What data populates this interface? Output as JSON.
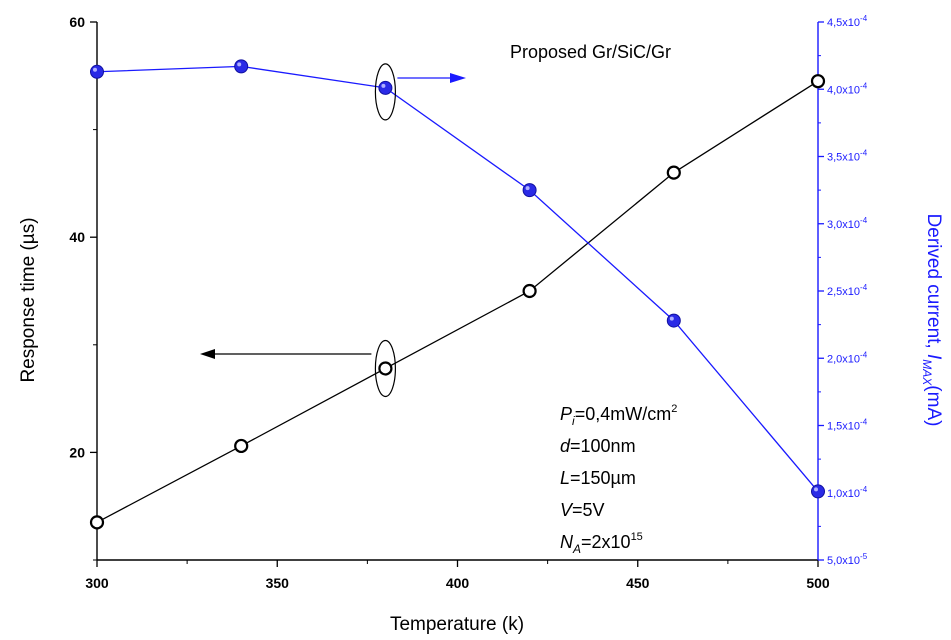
{
  "chart_data": {
    "type": "line",
    "title": "",
    "annotation": "Proposed Gr/SiC/Gr",
    "xlabel": "Temperature (k)",
    "ylabel_left": "Response time (µs)",
    "ylabel_right": {
      "main": "Derived current, ",
      "italic": "I",
      "sub": "MAX",
      "unit": "(mA)"
    },
    "xlim": [
      300,
      500
    ],
    "ylim_left": [
      10,
      60
    ],
    "ylim_right": [
      5e-05,
      0.00045
    ],
    "x_ticks": [
      "300",
      "350",
      "400",
      "450",
      "500"
    ],
    "y_left_ticks": [
      "20",
      "40",
      "60"
    ],
    "y_right_ticks": [
      {
        "value": 5e-05,
        "mantissa": "5,0x10",
        "exp": "-5"
      },
      {
        "value": 0.0001,
        "mantissa": "1,0x10",
        "exp": "-4"
      },
      {
        "value": 0.00015,
        "mantissa": "1,5x10",
        "exp": "-4"
      },
      {
        "value": 0.0002,
        "mantissa": "2,0x10",
        "exp": "-4"
      },
      {
        "value": 0.00025,
        "mantissa": "2,5x10",
        "exp": "-4"
      },
      {
        "value": 0.0003,
        "mantissa": "3,0x10",
        "exp": "-4"
      },
      {
        "value": 0.00035,
        "mantissa": "3,5x10",
        "exp": "-4"
      },
      {
        "value": 0.0004,
        "mantissa": "4,0x10",
        "exp": "-4"
      },
      {
        "value": 0.00045,
        "mantissa": "4,5x10",
        "exp": "-4"
      }
    ],
    "series": [
      {
        "axis": "left",
        "color": "#000000",
        "marker": "open-circle",
        "x": [
          300,
          340,
          380,
          420,
          460,
          500
        ],
        "y": [
          13.5,
          20.6,
          27.8,
          35.0,
          46.0,
          54.5
        ]
      },
      {
        "axis": "right",
        "color": "#1a1aff",
        "marker": "filled-circle",
        "x": [
          300,
          340,
          380,
          420,
          460,
          500
        ],
        "y": [
          0.000413,
          0.000417,
          0.000401,
          0.000325,
          0.000228,
          0.000101
        ]
      }
    ],
    "parameters": [
      {
        "sym": "P",
        "sub": "i",
        "val": "=0,4mW/cm",
        "sup": "2"
      },
      {
        "sym": "d",
        "sub": "",
        "val": "=100nm",
        "sup": ""
      },
      {
        "sym": "L",
        "sub": "",
        "val": "=150µm",
        "sup": ""
      },
      {
        "sym": "V",
        "sub": "",
        "val": "=5V",
        "sup": ""
      },
      {
        "sym": "N",
        "sub": "A",
        "val": "=2x10",
        "sup": "15"
      }
    ],
    "grid": false,
    "legend": "none",
    "colors": {
      "left_axis": "#000000",
      "right_axis": "#1a1aff"
    }
  }
}
